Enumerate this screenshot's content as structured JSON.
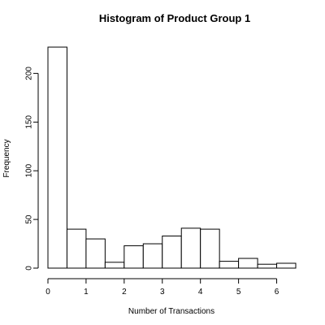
{
  "chart_data": {
    "type": "bar",
    "subtype": "histogram",
    "title": "Histogram of Product Group 1",
    "xlabel": "Number of Transactions",
    "ylabel": "Frequency",
    "bins": [
      {
        "start": 0.0,
        "end": 0.5,
        "count": 227
      },
      {
        "start": 0.5,
        "end": 1.0,
        "count": 40
      },
      {
        "start": 1.0,
        "end": 1.5,
        "count": 30
      },
      {
        "start": 1.5,
        "end": 2.0,
        "count": 6
      },
      {
        "start": 2.0,
        "end": 2.5,
        "count": 23
      },
      {
        "start": 2.5,
        "end": 3.0,
        "count": 25
      },
      {
        "start": 3.0,
        "end": 3.5,
        "count": 33
      },
      {
        "start": 3.5,
        "end": 4.0,
        "count": 41
      },
      {
        "start": 4.0,
        "end": 4.5,
        "count": 40
      },
      {
        "start": 4.5,
        "end": 5.0,
        "count": 7
      },
      {
        "start": 5.0,
        "end": 5.5,
        "count": 10
      },
      {
        "start": 5.5,
        "end": 6.0,
        "count": 4
      },
      {
        "start": 6.0,
        "end": 6.5,
        "count": 5
      }
    ],
    "xlim": [
      0,
      6.5
    ],
    "ylim": [
      0,
      227
    ],
    "x_ticks": [
      "0",
      "1",
      "2",
      "3",
      "4",
      "5",
      "6"
    ],
    "y_ticks": [
      "0",
      "50",
      "100",
      "150",
      "200"
    ],
    "grid": false,
    "legend": "none",
    "bar_fill": "#ffffff",
    "bar_stroke": "#000000"
  }
}
